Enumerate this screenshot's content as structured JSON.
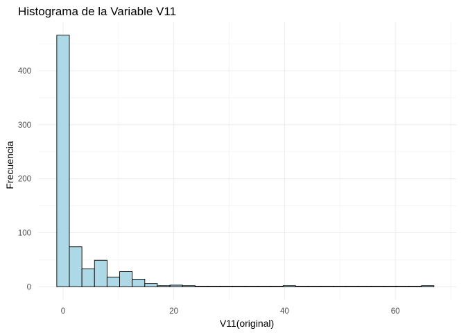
{
  "chart_data": {
    "type": "bar",
    "title": "Histograma de la Variable V11",
    "xlabel": "V11(original)",
    "ylabel": "Frecuencia",
    "bin_width": 2.27,
    "bins": [
      {
        "x_start": -1.135,
        "x_end": 1.135,
        "count": 466
      },
      {
        "x_start": 1.135,
        "x_end": 3.405,
        "count": 74
      },
      {
        "x_start": 3.405,
        "x_end": 5.675,
        "count": 33
      },
      {
        "x_start": 5.675,
        "x_end": 7.945,
        "count": 49
      },
      {
        "x_start": 7.945,
        "x_end": 10.215,
        "count": 18
      },
      {
        "x_start": 10.215,
        "x_end": 12.485,
        "count": 28
      },
      {
        "x_start": 12.485,
        "x_end": 14.755,
        "count": 14
      },
      {
        "x_start": 14.755,
        "x_end": 17.025,
        "count": 6
      },
      {
        "x_start": 17.025,
        "x_end": 19.295,
        "count": 2
      },
      {
        "x_start": 19.295,
        "x_end": 21.565,
        "count": 3
      },
      {
        "x_start": 21.565,
        "x_end": 23.835,
        "count": 2
      },
      {
        "x_start": 23.835,
        "x_end": 26.105,
        "count": 1
      },
      {
        "x_start": 26.105,
        "x_end": 28.375,
        "count": 1
      },
      {
        "x_start": 28.375,
        "x_end": 30.645,
        "count": 1
      },
      {
        "x_start": 30.645,
        "x_end": 32.915,
        "count": 1
      },
      {
        "x_start": 32.915,
        "x_end": 35.185,
        "count": 1
      },
      {
        "x_start": 35.185,
        "x_end": 37.455,
        "count": 1
      },
      {
        "x_start": 37.455,
        "x_end": 39.725,
        "count": 1
      },
      {
        "x_start": 39.725,
        "x_end": 41.995,
        "count": 2
      },
      {
        "x_start": 41.995,
        "x_end": 44.265,
        "count": 1
      },
      {
        "x_start": 44.265,
        "x_end": 46.535,
        "count": 1
      },
      {
        "x_start": 46.535,
        "x_end": 48.805,
        "count": 1
      },
      {
        "x_start": 48.805,
        "x_end": 51.075,
        "count": 1
      },
      {
        "x_start": 51.075,
        "x_end": 53.345,
        "count": 1
      },
      {
        "x_start": 53.345,
        "x_end": 55.615,
        "count": 1
      },
      {
        "x_start": 55.615,
        "x_end": 57.885,
        "count": 1
      },
      {
        "x_start": 57.885,
        "x_end": 60.155,
        "count": 1
      },
      {
        "x_start": 60.155,
        "x_end": 62.425,
        "count": 1
      },
      {
        "x_start": 62.425,
        "x_end": 64.695,
        "count": 1
      },
      {
        "x_start": 64.695,
        "x_end": 66.965,
        "count": 2
      }
    ],
    "x_ticks": [
      0,
      20,
      40,
      60
    ],
    "y_ticks": [
      0,
      100,
      200,
      300,
      400
    ],
    "xlim": [
      -4.5,
      71
    ],
    "ylim": [
      -24,
      490
    ],
    "grid": true,
    "colors": {
      "fill": "#add8e6",
      "outline": "#000000",
      "grid": "#ebebeb",
      "tick_text": "#4d4d4d"
    }
  }
}
